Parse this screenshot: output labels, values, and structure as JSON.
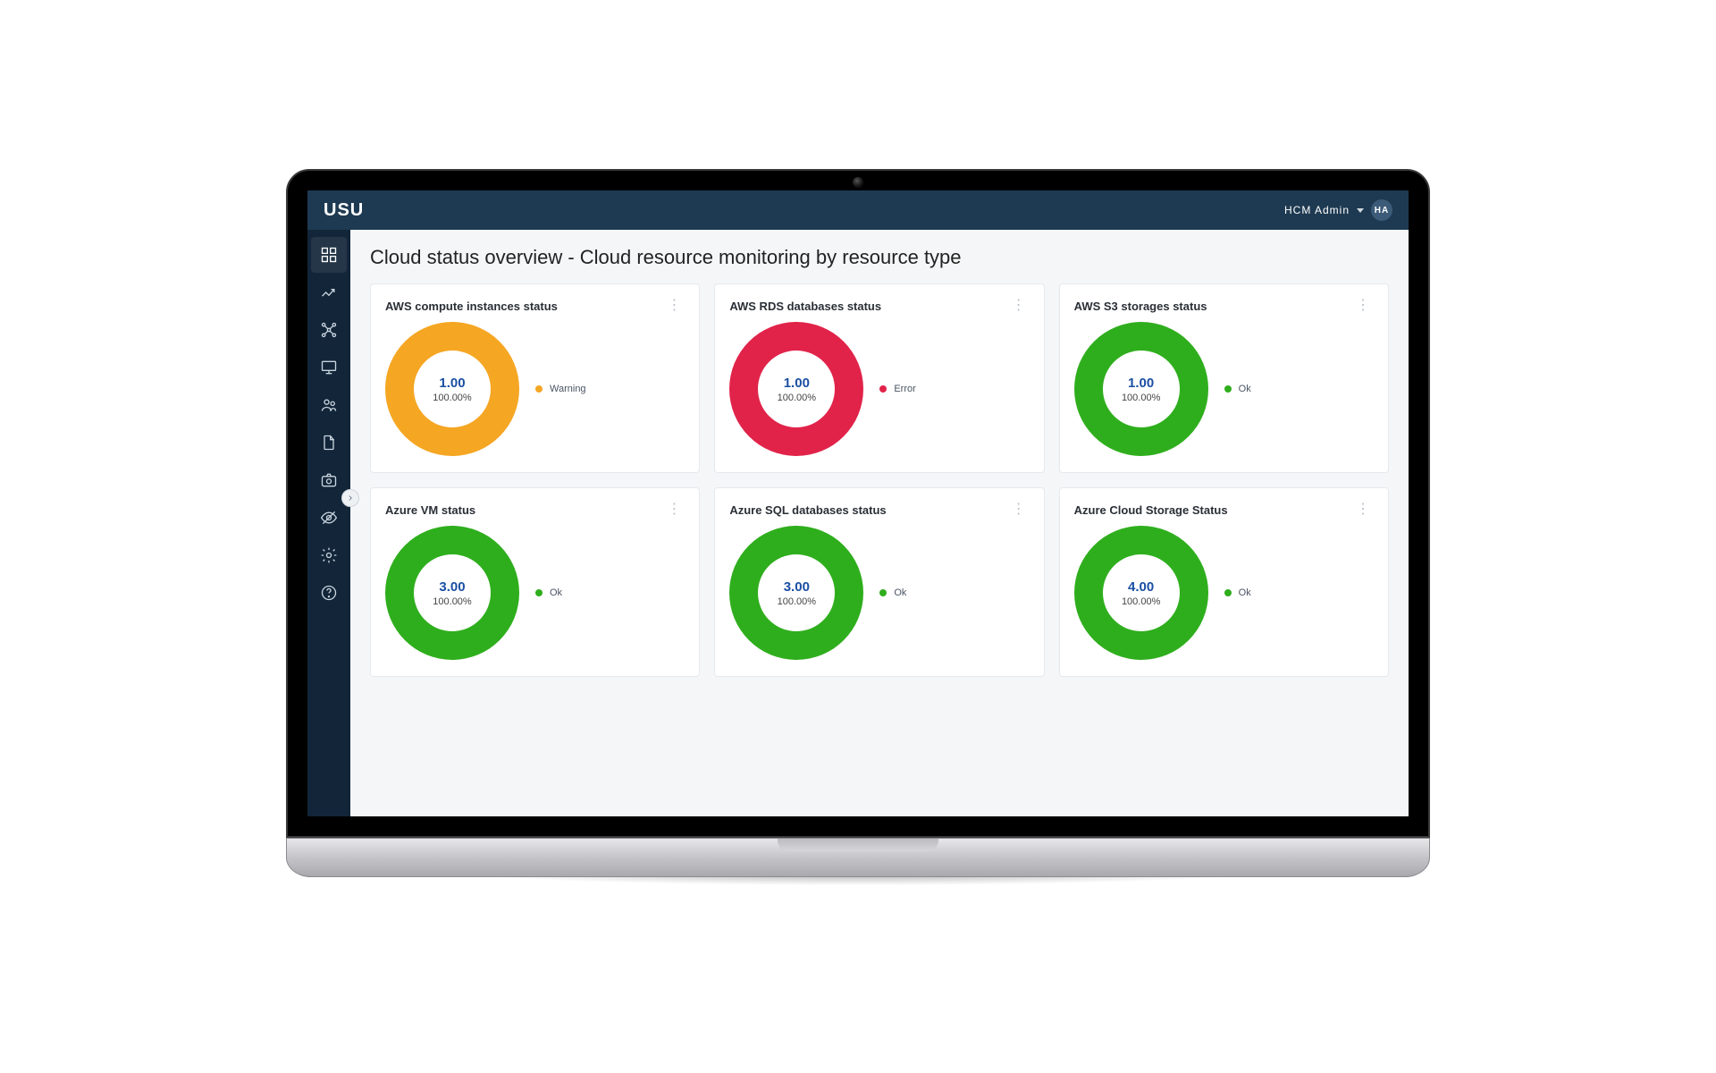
{
  "frame": {
    "type": "laptop",
    "bezel_color": "#000000",
    "base_color": "#c5c5c9"
  },
  "colors": {
    "topbar_bg": "#1e3a52",
    "sidebar_bg": "#122539",
    "content_bg": "#f5f6f8",
    "card_bg": "#ffffff",
    "card_border": "#e6e9ed",
    "value_text": "#1a4fa3",
    "status": {
      "warning": "#f5a623",
      "error": "#e1234a",
      "ok": "#2fae1d"
    }
  },
  "topbar": {
    "brand": "USU",
    "user_label": "HCM Admin",
    "avatar_initials": "HA"
  },
  "sidebar": {
    "items": [
      {
        "name": "dashboard"
      },
      {
        "name": "analytics"
      },
      {
        "name": "network"
      },
      {
        "name": "inventory"
      },
      {
        "name": "users"
      },
      {
        "name": "documents"
      },
      {
        "name": "archive"
      },
      {
        "name": "visibility"
      },
      {
        "name": "settings"
      },
      {
        "name": "help"
      }
    ]
  },
  "page": {
    "title": "Cloud status overview - Cloud resource monitoring by resource type"
  },
  "cards": [
    {
      "title": "AWS compute instances status",
      "value": "1.00",
      "percent": "100.00%",
      "status_label": "Warning",
      "status_color": "#f5a623",
      "donut_angle_deg": 360
    },
    {
      "title": "AWS RDS databases status",
      "value": "1.00",
      "percent": "100.00%",
      "status_label": "Error",
      "status_color": "#e1234a",
      "donut_angle_deg": 360
    },
    {
      "title": "AWS S3 storages status",
      "value": "1.00",
      "percent": "100.00%",
      "status_label": "Ok",
      "status_color": "#2fae1d",
      "donut_angle_deg": 360
    },
    {
      "title": "Azure VM status",
      "value": "3.00",
      "percent": "100.00%",
      "status_label": "Ok",
      "status_color": "#2fae1d",
      "donut_angle_deg": 360
    },
    {
      "title": "Azure SQL databases status",
      "value": "3.00",
      "percent": "100.00%",
      "status_label": "Ok",
      "status_color": "#2fae1d",
      "donut_angle_deg": 360
    },
    {
      "title": "Azure Cloud Storage Status",
      "value": "4.00",
      "percent": "100.00%",
      "status_label": "Ok",
      "status_color": "#2fae1d",
      "donut_angle_deg": 360
    }
  ]
}
